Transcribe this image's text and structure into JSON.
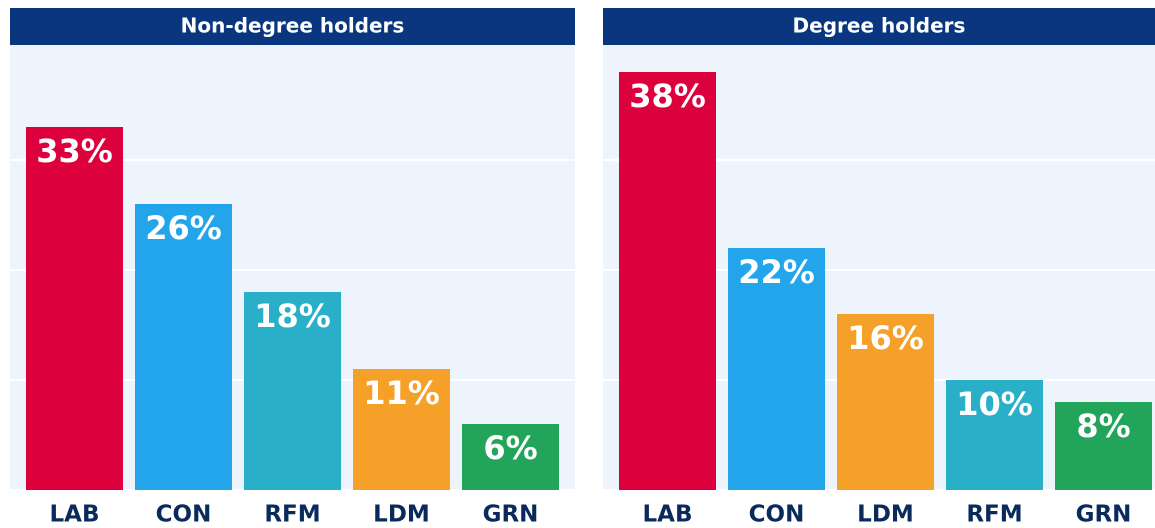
{
  "chart_data": [
    {
      "type": "bar",
      "title": "Non-degree holders",
      "categories": [
        "LAB",
        "CON",
        "RFM",
        "LDM",
        "GRN"
      ],
      "values": [
        33,
        26,
        18,
        11,
        6
      ],
      "value_labels": [
        "33%",
        "26%",
        "18%",
        "11%",
        "6%"
      ],
      "colors": [
        "#dc003c",
        "#22a5ea",
        "#29b0c8",
        "#f5a028",
        "#22a55a"
      ],
      "ylim": [
        0,
        40
      ],
      "yticks": [
        0,
        10,
        20,
        30
      ],
      "grid": true
    },
    {
      "type": "bar",
      "title": "Degree holders",
      "categories": [
        "LAB",
        "CON",
        "LDM",
        "RFM",
        "GRN"
      ],
      "values": [
        38,
        22,
        16,
        10,
        8
      ],
      "value_labels": [
        "38%",
        "22%",
        "16%",
        "10%",
        "8%"
      ],
      "colors": [
        "#dc003c",
        "#22a5ea",
        "#f5a028",
        "#29b0c8",
        "#22a55a"
      ],
      "ylim": [
        0,
        40
      ],
      "yticks": [
        0,
        10,
        20,
        30
      ],
      "grid": true
    }
  ]
}
